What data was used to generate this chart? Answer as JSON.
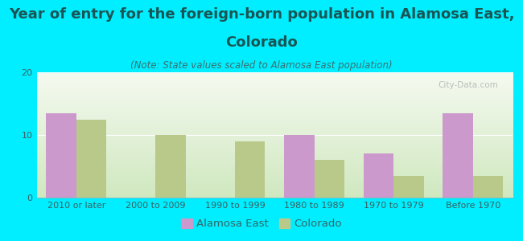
{
  "title_line1": "Year of entry for the foreign-born population in Alamosa East,",
  "title_line2": "Colorado",
  "subtitle": "(Note: State values scaled to Alamosa East population)",
  "categories": [
    "2010 or later",
    "2000 to 2009",
    "1990 to 1999",
    "1980 to 1989",
    "1970 to 1979",
    "Before 1970"
  ],
  "alamosa_east": [
    13.5,
    0,
    0,
    10,
    7,
    13.5
  ],
  "colorado": [
    12.5,
    10,
    9,
    6,
    3.5,
    3.5
  ],
  "alamosa_color": "#cc99cc",
  "colorado_color": "#b8c98a",
  "background_color": "#00eeff",
  "plot_bg": "#e8f0dc",
  "ylim": [
    0,
    20
  ],
  "yticks": [
    0,
    10,
    20
  ],
  "bar_width": 0.38,
  "title_fontsize": 13,
  "subtitle_fontsize": 8.5,
  "legend_fontsize": 9.5,
  "tick_fontsize": 8,
  "title_color": "#1a5555",
  "subtitle_color": "#3a7070",
  "tick_color": "#3a6060",
  "watermark": "City-Data.com"
}
